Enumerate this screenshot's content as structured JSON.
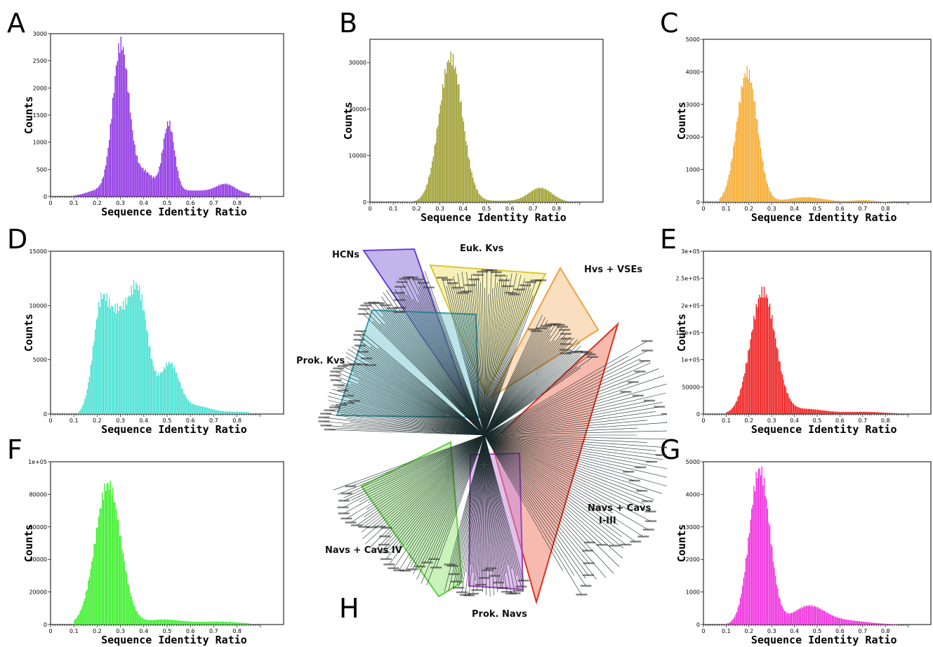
{
  "panels": {
    "A": "A",
    "B": "B",
    "C": "C",
    "D": "D",
    "E": "E",
    "F": "F",
    "G": "G",
    "H": "H"
  },
  "chart_data": [
    {
      "id": "A",
      "type": "bar",
      "color": "#8a2be2",
      "xlabel": "Sequence Identity Ratio",
      "ylabel": "Counts",
      "xlim": [
        0,
        1
      ],
      "ylim": [
        0,
        3000
      ],
      "xticks": [
        0,
        0.1,
        0.2,
        0.3,
        0.4,
        0.5,
        0.6,
        0.7,
        0.8
      ],
      "yticks": [
        0,
        500,
        1000,
        1500,
        2000,
        2500,
        3000
      ],
      "ytick_labels": [
        "0",
        "500",
        "1000",
        "1500",
        "2000",
        "2500",
        "3000"
      ],
      "peaks": [
        [
          0.3,
          2750,
          0.035
        ],
        [
          0.505,
          1250,
          0.025
        ],
        [
          0.4,
          380,
          0.04
        ],
        [
          0.2,
          100,
          0.05
        ],
        [
          0.75,
          150,
          0.04
        ],
        [
          0.6,
          110,
          0.2
        ]
      ],
      "range": [
        0.1,
        0.855
      ]
    },
    {
      "id": "B",
      "type": "bar",
      "color": "#9a9a26",
      "xlabel": "Sequence Identity Ratio",
      "ylabel": "Counts",
      "xlim": [
        0,
        1
      ],
      "ylim": [
        0,
        35000
      ],
      "xticks": [
        0,
        0.1,
        0.2,
        0.3,
        0.4,
        0.5,
        0.6,
        0.7,
        0.8
      ],
      "yticks": [
        0,
        10000,
        20000,
        30000
      ],
      "ytick_labels": [
        "0",
        "10000",
        "20000",
        "30000"
      ],
      "peaks": [
        [
          0.345,
          31000,
          0.05
        ],
        [
          0.73,
          3000,
          0.05
        ],
        [
          0.55,
          300,
          0.1
        ]
      ],
      "range": [
        0.12,
        0.855
      ]
    },
    {
      "id": "C",
      "type": "bar",
      "color": "#f5a623",
      "xlabel": "Sequence Identity Ratio",
      "ylabel": "Counts",
      "xlim": [
        0,
        1
      ],
      "ylim": [
        0,
        5000
      ],
      "xticks": [
        0,
        0.1,
        0.2,
        0.3,
        0.4,
        0.5,
        0.6,
        0.7,
        0.8
      ],
      "yticks": [
        0,
        1000,
        2000,
        3000,
        4000,
        5000
      ],
      "ytick_labels": [
        "0",
        "1000",
        "2000",
        "3000",
        "4000",
        "5000"
      ],
      "peaks": [
        [
          0.19,
          4000,
          0.045
        ],
        [
          0.45,
          150,
          0.08
        ],
        [
          0.7,
          60,
          0.05
        ]
      ],
      "range": [
        0.07,
        0.855
      ]
    },
    {
      "id": "D",
      "type": "bar",
      "color": "#40e0d0",
      "xlabel": "Sequence Identity Ratio",
      "ylabel": "Counts",
      "xlim": [
        0,
        1
      ],
      "ylim": [
        0,
        15000
      ],
      "xticks": [
        0,
        0.1,
        0.2,
        0.3,
        0.4,
        0.5,
        0.6,
        0.7,
        0.8
      ],
      "yticks": [
        0,
        5000,
        10000,
        15000
      ],
      "ytick_labels": [
        "0",
        "5000",
        "10000",
        "15000"
      ],
      "peaks": [
        [
          0.215,
          9800,
          0.035
        ],
        [
          0.37,
          11500,
          0.045
        ],
        [
          0.285,
          6500,
          0.035
        ],
        [
          0.51,
          4500,
          0.04
        ],
        [
          0.62,
          700,
          0.06
        ],
        [
          0.8,
          200,
          0.1
        ]
      ],
      "range": [
        0.12,
        0.855
      ]
    },
    {
      "id": "E",
      "type": "bar",
      "color": "#ee1111",
      "xlabel": "Sequence Identity Ratio",
      "ylabel": "Counts",
      "xlim": [
        0,
        1
      ],
      "ylim": [
        0,
        300000
      ],
      "xticks": [
        0,
        0.1,
        0.2,
        0.3,
        0.4,
        0.5,
        0.6,
        0.7,
        0.8
      ],
      "yticks": [
        0,
        50000,
        100000,
        150000,
        200000,
        250000,
        300000
      ],
      "ytick_labels": [
        "0",
        "50000",
        "1e+05",
        "1.5e+05",
        "2e+05",
        "2.5e+05",
        "3e+05"
      ],
      "peaks": [
        [
          0.26,
          225000,
          0.055
        ],
        [
          0.45,
          9000,
          0.08
        ],
        [
          0.7,
          4000,
          0.1
        ]
      ],
      "range": [
        0.1,
        0.855
      ]
    },
    {
      "id": "F",
      "type": "bar",
      "color": "#33ee22",
      "xlabel": "Sequence Identity Ratio",
      "ylabel": "Counts",
      "xlim": [
        0,
        1
      ],
      "ylim": [
        0,
        100000
      ],
      "xticks": [
        0,
        0.1,
        0.2,
        0.3,
        0.4,
        0.5,
        0.6,
        0.7,
        0.8
      ],
      "yticks": [
        0,
        20000,
        40000,
        60000,
        80000,
        100000
      ],
      "ytick_labels": [
        "0",
        "20000",
        "40000",
        "60000",
        "80000",
        "1e+05"
      ],
      "peaks": [
        [
          0.245,
          86000,
          0.055
        ],
        [
          0.48,
          3000,
          0.08
        ],
        [
          0.72,
          1800,
          0.1
        ]
      ],
      "range": [
        0.1,
        0.855
      ]
    },
    {
      "id": "G",
      "type": "bar",
      "color": "#ee22dd",
      "xlabel": "Sequence Identity Ratio",
      "ylabel": "Counts",
      "xlim": [
        0,
        1
      ],
      "ylim": [
        0,
        5000
      ],
      "xticks": [
        0,
        0.1,
        0.2,
        0.3,
        0.4,
        0.5,
        0.6,
        0.7,
        0.8
      ],
      "yticks": [
        0,
        1000,
        2000,
        3000,
        4000,
        5000
      ],
      "ytick_labels": [
        "0",
        "1000",
        "2000",
        "3000",
        "4000",
        "5000"
      ],
      "peaks": [
        [
          0.245,
          4750,
          0.045
        ],
        [
          0.46,
          550,
          0.07
        ],
        [
          0.62,
          120,
          0.1
        ]
      ],
      "range": [
        0.1,
        0.855
      ]
    }
  ],
  "tree": {
    "clades": [
      {
        "label": "HCNs",
        "color": "#6a3fd4",
        "fill": "rgba(120,90,210,0.45)"
      },
      {
        "label": "Euk. Kvs",
        "color": "#d8c830",
        "fill": "rgba(240,225,120,0.5)"
      },
      {
        "label": "Hvs + VSEs",
        "color": "#f0a040",
        "fill": "rgba(245,190,130,0.5)"
      },
      {
        "label": "Prok. Kvs",
        "color": "#3aa0b0",
        "fill": "rgba(120,200,210,0.5)"
      },
      {
        "label": "Navs + Cavs\nI-III",
        "color": "#e03020",
        "fill": "rgba(240,130,110,0.55)"
      },
      {
        "label": "Navs + Cavs IV",
        "color": "#60d040",
        "fill": "rgba(150,230,120,0.5)"
      },
      {
        "label": "Prok. Navs",
        "color": "#a040c0",
        "fill": "rgba(200,140,220,0.55)"
      }
    ]
  }
}
